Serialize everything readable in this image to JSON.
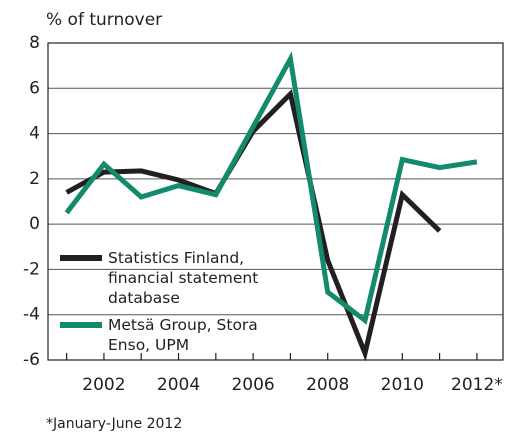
{
  "chart_data": {
    "type": "line",
    "y_label": "% of turnover",
    "footnote": "*January-June 2012",
    "x": [
      2001,
      2002,
      2003,
      2004,
      2005,
      2006,
      2007,
      2008,
      2009,
      2010,
      2011,
      2012
    ],
    "series": [
      {
        "name": "Statistics Finland, financial statement database",
        "color": "#231f20",
        "values": [
          1.4,
          2.3,
          2.35,
          1.95,
          1.35,
          4.1,
          5.75,
          -1.6,
          -5.7,
          1.3,
          -0.3,
          null
        ]
      },
      {
        "name": "Metsä Group, Stora Enso, UPM",
        "color": "#138a6b",
        "values": [
          0.5,
          2.65,
          1.2,
          1.7,
          1.3,
          4.3,
          7.3,
          -3.0,
          -4.25,
          2.85,
          2.5,
          2.75
        ]
      }
    ],
    "xlim": [
      2000.5,
      2012.7
    ],
    "xticks": [
      2002,
      2004,
      2006,
      2008,
      2010,
      {
        "value": 2012,
        "label": "2012*"
      }
    ],
    "ylim": [
      -6,
      8
    ],
    "yticks": [
      -6,
      -4,
      -2,
      0,
      2,
      4,
      6,
      8
    ],
    "grid": true,
    "legend": "lower-left"
  }
}
